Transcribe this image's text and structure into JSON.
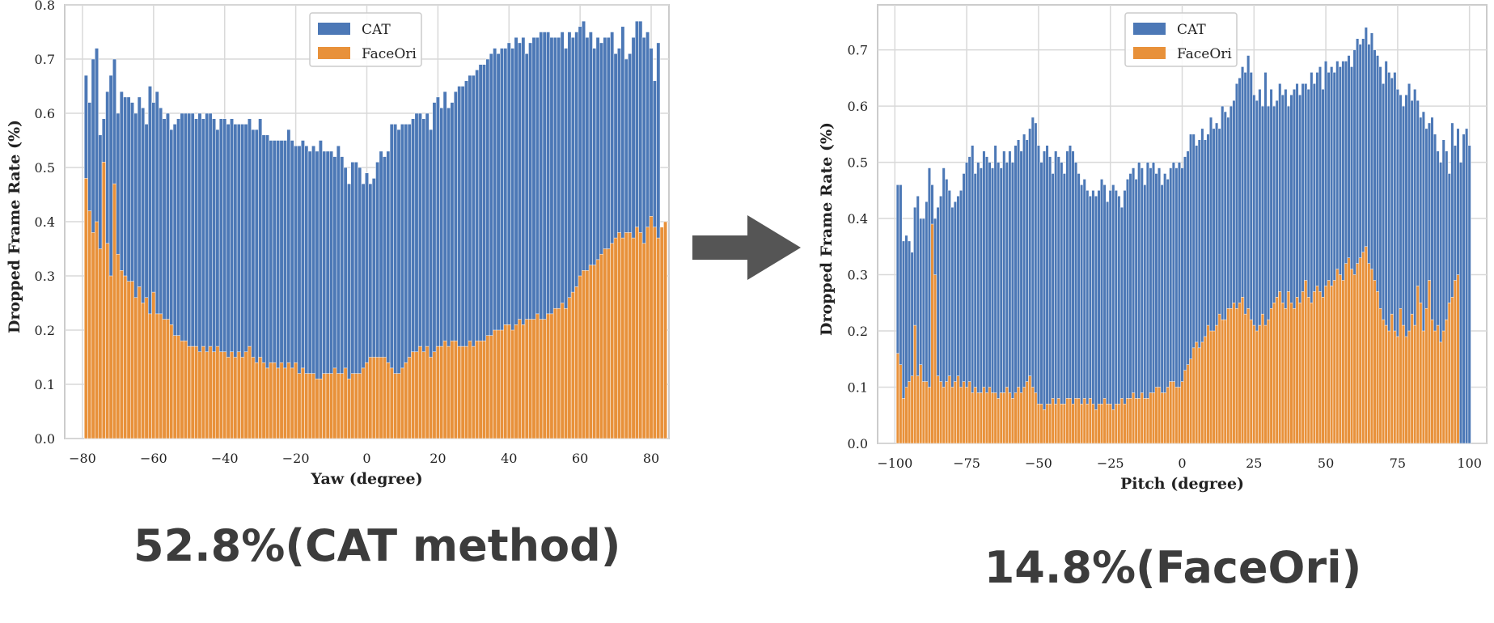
{
  "captions": {
    "left": "52.8%(CAT method)",
    "right": "14.8%(FaceOri)"
  },
  "arrow_icon": "right-arrow-icon",
  "colors": {
    "cat": "#4c78b6",
    "faceori": "#e8913a",
    "grid": "#d9d9d9",
    "frame": "#cccccc",
    "caption": "#3c3c3c"
  },
  "chart_data": [
    {
      "type": "bar",
      "stacked": "overlay",
      "title": "",
      "xlabel": "Yaw (degree)",
      "ylabel": "Dropped Frame Rate (%)",
      "xlim": [
        -85,
        85
      ],
      "ylim": [
        0,
        0.8
      ],
      "xticks": [
        -80,
        -60,
        -40,
        -20,
        0,
        20,
        40,
        60,
        80
      ],
      "xtick_labels": [
        "−80",
        "−60",
        "−40",
        "−20",
        "0",
        "20",
        "40",
        "60",
        "80"
      ],
      "yticks": [
        0,
        0.1,
        0.2,
        0.3,
        0.4,
        0.5,
        0.6,
        0.7,
        0.8
      ],
      "ytick_labels": [
        "0.0",
        "0.1",
        "0.2",
        "0.3",
        "0.4",
        "0.5",
        "0.6",
        "0.7",
        "0.8"
      ],
      "grid": true,
      "legend": "top-center",
      "x_range": [
        -79,
        80
      ],
      "bin_width": 1,
      "series": [
        {
          "name": "CAT",
          "color": "#4c78b6",
          "values": [
            0.67,
            0.62,
            0.7,
            0.72,
            0.56,
            0.59,
            0.64,
            0.67,
            0.7,
            0.6,
            0.64,
            0.63,
            0.63,
            0.62,
            0.6,
            0.63,
            0.61,
            0.58,
            0.65,
            0.62,
            0.64,
            0.61,
            0.59,
            0.6,
            0.57,
            0.58,
            0.59,
            0.6,
            0.6,
            0.6,
            0.6,
            0.59,
            0.6,
            0.59,
            0.6,
            0.6,
            0.59,
            0.57,
            0.59,
            0.59,
            0.58,
            0.59,
            0.58,
            0.58,
            0.58,
            0.58,
            0.59,
            0.57,
            0.57,
            0.59,
            0.56,
            0.56,
            0.55,
            0.55,
            0.55,
            0.55,
            0.55,
            0.57,
            0.55,
            0.54,
            0.54,
            0.55,
            0.54,
            0.53,
            0.54,
            0.53,
            0.55,
            0.53,
            0.53,
            0.53,
            0.52,
            0.54,
            0.52,
            0.5,
            0.47,
            0.51,
            0.51,
            0.5,
            0.47,
            0.49,
            0.47,
            0.48,
            0.51,
            0.53,
            0.52,
            0.53,
            0.58,
            0.58,
            0.57,
            0.58,
            0.58,
            0.58,
            0.59,
            0.6,
            0.6,
            0.59,
            0.6,
            0.57,
            0.62,
            0.63,
            0.61,
            0.64,
            0.61,
            0.62,
            0.64,
            0.65,
            0.65,
            0.66,
            0.67,
            0.67,
            0.68,
            0.69,
            0.69,
            0.7,
            0.71,
            0.72,
            0.71,
            0.72,
            0.72,
            0.73,
            0.72,
            0.74,
            0.73,
            0.74,
            0.71,
            0.73,
            0.74,
            0.74,
            0.75,
            0.75,
            0.75,
            0.74,
            0.74,
            0.74,
            0.75,
            0.72,
            0.75,
            0.74,
            0.75,
            0.76,
            0.77,
            0.74,
            0.75,
            0.72,
            0.74,
            0.73,
            0.74,
            0.74,
            0.75,
            0.71,
            0.72,
            0.76,
            0.7,
            0.71,
            0.74,
            0.77,
            0.77,
            0.74,
            0.75,
            0.72,
            0.66,
            0.73
          ]
        },
        {
          "name": "FaceOri",
          "color": "#e8913a",
          "values": [
            0.48,
            0.42,
            0.38,
            0.4,
            0.35,
            0.51,
            0.36,
            0.3,
            0.47,
            0.34,
            0.31,
            0.3,
            0.29,
            0.29,
            0.26,
            0.28,
            0.25,
            0.26,
            0.23,
            0.27,
            0.23,
            0.23,
            0.22,
            0.22,
            0.21,
            0.19,
            0.19,
            0.18,
            0.18,
            0.17,
            0.17,
            0.17,
            0.16,
            0.17,
            0.16,
            0.17,
            0.16,
            0.17,
            0.16,
            0.16,
            0.15,
            0.16,
            0.15,
            0.16,
            0.15,
            0.16,
            0.17,
            0.15,
            0.14,
            0.15,
            0.14,
            0.13,
            0.14,
            0.14,
            0.13,
            0.14,
            0.13,
            0.14,
            0.13,
            0.14,
            0.12,
            0.13,
            0.12,
            0.12,
            0.12,
            0.11,
            0.11,
            0.12,
            0.12,
            0.12,
            0.13,
            0.12,
            0.12,
            0.13,
            0.11,
            0.12,
            0.12,
            0.12,
            0.13,
            0.14,
            0.15,
            0.15,
            0.15,
            0.15,
            0.15,
            0.14,
            0.13,
            0.12,
            0.12,
            0.13,
            0.14,
            0.15,
            0.16,
            0.16,
            0.17,
            0.16,
            0.17,
            0.15,
            0.16,
            0.17,
            0.17,
            0.18,
            0.17,
            0.18,
            0.18,
            0.17,
            0.17,
            0.17,
            0.18,
            0.17,
            0.18,
            0.18,
            0.18,
            0.19,
            0.19,
            0.2,
            0.2,
            0.2,
            0.21,
            0.21,
            0.2,
            0.21,
            0.22,
            0.21,
            0.22,
            0.22,
            0.22,
            0.23,
            0.22,
            0.22,
            0.23,
            0.23,
            0.24,
            0.24,
            0.25,
            0.24,
            0.26,
            0.27,
            0.28,
            0.3,
            0.31,
            0.31,
            0.32,
            0.32,
            0.33,
            0.34,
            0.35,
            0.35,
            0.36,
            0.37,
            0.38,
            0.37,
            0.38,
            0.38,
            0.37,
            0.39,
            0.38,
            0.36,
            0.39,
            0.41,
            0.39,
            0.37,
            0.39,
            0.4
          ]
        }
      ]
    },
    {
      "type": "bar",
      "stacked": "overlay",
      "title": "",
      "xlabel": "Pitch (degree)",
      "ylabel": "Dropped Frame Rate (%)",
      "xlim": [
        -106,
        106
      ],
      "ylim": [
        0,
        0.78
      ],
      "xticks": [
        -100,
        -75,
        -50,
        -25,
        0,
        25,
        50,
        75,
        100
      ],
      "xtick_labels": [
        "−100",
        "−75",
        "−50",
        "−25",
        "0",
        "25",
        "50",
        "75",
        "100"
      ],
      "yticks": [
        0,
        0.1,
        0.2,
        0.3,
        0.4,
        0.5,
        0.6,
        0.7
      ],
      "ytick_labels": [
        "0.0",
        "0.1",
        "0.2",
        "0.3",
        "0.4",
        "0.5",
        "0.6",
        "0.7"
      ],
      "grid": true,
      "legend": "top-center",
      "x_range": [
        -99,
        100
      ],
      "bin_width": 1,
      "series": [
        {
          "name": "CAT",
          "color": "#4c78b6",
          "values": [
            0.46,
            0.46,
            0.36,
            0.37,
            0.36,
            0.34,
            0.42,
            0.44,
            0.4,
            0.4,
            0.43,
            0.49,
            0.46,
            0.4,
            0.42,
            0.44,
            0.49,
            0.47,
            0.45,
            0.42,
            0.43,
            0.44,
            0.45,
            0.48,
            0.5,
            0.51,
            0.53,
            0.48,
            0.5,
            0.49,
            0.52,
            0.51,
            0.5,
            0.49,
            0.53,
            0.5,
            0.49,
            0.52,
            0.5,
            0.52,
            0.5,
            0.53,
            0.54,
            0.52,
            0.55,
            0.54,
            0.56,
            0.58,
            0.57,
            0.53,
            0.5,
            0.52,
            0.53,
            0.51,
            0.48,
            0.52,
            0.51,
            0.5,
            0.48,
            0.52,
            0.53,
            0.52,
            0.5,
            0.48,
            0.46,
            0.47,
            0.45,
            0.44,
            0.45,
            0.44,
            0.45,
            0.47,
            0.46,
            0.43,
            0.45,
            0.46,
            0.45,
            0.44,
            0.42,
            0.45,
            0.47,
            0.48,
            0.49,
            0.47,
            0.5,
            0.49,
            0.46,
            0.5,
            0.49,
            0.5,
            0.48,
            0.49,
            0.46,
            0.48,
            0.47,
            0.49,
            0.5,
            0.49,
            0.5,
            0.49,
            0.51,
            0.52,
            0.55,
            0.55,
            0.53,
            0.54,
            0.56,
            0.54,
            0.55,
            0.58,
            0.56,
            0.57,
            0.56,
            0.6,
            0.59,
            0.58,
            0.6,
            0.61,
            0.64,
            0.65,
            0.67,
            0.66,
            0.69,
            0.66,
            0.62,
            0.61,
            0.63,
            0.6,
            0.66,
            0.6,
            0.63,
            0.6,
            0.61,
            0.64,
            0.62,
            0.63,
            0.6,
            0.62,
            0.63,
            0.64,
            0.62,
            0.64,
            0.64,
            0.63,
            0.66,
            0.64,
            0.66,
            0.67,
            0.63,
            0.68,
            0.66,
            0.67,
            0.66,
            0.68,
            0.67,
            0.68,
            0.68,
            0.69,
            0.67,
            0.7,
            0.72,
            0.71,
            0.72,
            0.74,
            0.71,
            0.73,
            0.7,
            0.69,
            0.67,
            0.64,
            0.68,
            0.66,
            0.65,
            0.66,
            0.63,
            0.62,
            0.6,
            0.62,
            0.64,
            0.61,
            0.63,
            0.61,
            0.58,
            0.59,
            0.56,
            0.57,
            0.58,
            0.55,
            0.52,
            0.5,
            0.54,
            0.52,
            0.48,
            0.57,
            0.53,
            0.56,
            0.5,
            0.55,
            0.56,
            0.53
          ]
        },
        {
          "name": "FaceOri",
          "color": "#e8913a",
          "values": [
            0.16,
            0.14,
            0.08,
            0.1,
            0.11,
            0.12,
            0.21,
            0.12,
            0.14,
            0.11,
            0.11,
            0.1,
            0.39,
            0.3,
            0.12,
            0.11,
            0.1,
            0.11,
            0.12,
            0.1,
            0.11,
            0.12,
            0.1,
            0.11,
            0.1,
            0.11,
            0.09,
            0.1,
            0.09,
            0.09,
            0.1,
            0.09,
            0.1,
            0.09,
            0.09,
            0.08,
            0.09,
            0.09,
            0.1,
            0.09,
            0.08,
            0.09,
            0.1,
            0.09,
            0.1,
            0.11,
            0.12,
            0.1,
            0.09,
            0.07,
            0.07,
            0.06,
            0.07,
            0.07,
            0.08,
            0.07,
            0.08,
            0.07,
            0.07,
            0.08,
            0.08,
            0.07,
            0.08,
            0.08,
            0.07,
            0.08,
            0.07,
            0.08,
            0.07,
            0.06,
            0.07,
            0.07,
            0.08,
            0.07,
            0.07,
            0.06,
            0.07,
            0.07,
            0.08,
            0.07,
            0.08,
            0.08,
            0.09,
            0.08,
            0.08,
            0.09,
            0.08,
            0.08,
            0.09,
            0.09,
            0.1,
            0.1,
            0.09,
            0.09,
            0.1,
            0.11,
            0.11,
            0.1,
            0.1,
            0.11,
            0.13,
            0.14,
            0.15,
            0.17,
            0.18,
            0.17,
            0.18,
            0.19,
            0.21,
            0.2,
            0.2,
            0.21,
            0.23,
            0.22,
            0.22,
            0.24,
            0.24,
            0.25,
            0.24,
            0.25,
            0.26,
            0.23,
            0.24,
            0.22,
            0.21,
            0.2,
            0.21,
            0.23,
            0.21,
            0.22,
            0.24,
            0.25,
            0.26,
            0.27,
            0.25,
            0.24,
            0.27,
            0.25,
            0.24,
            0.26,
            0.25,
            0.27,
            0.29,
            0.26,
            0.25,
            0.27,
            0.28,
            0.27,
            0.26,
            0.28,
            0.29,
            0.28,
            0.29,
            0.31,
            0.3,
            0.29,
            0.32,
            0.33,
            0.31,
            0.3,
            0.32,
            0.33,
            0.34,
            0.35,
            0.32,
            0.31,
            0.29,
            0.27,
            0.24,
            0.22,
            0.21,
            0.2,
            0.23,
            0.2,
            0.19,
            0.24,
            0.21,
            0.19,
            0.2,
            0.23,
            0.21,
            0.28,
            0.25,
            0.2,
            0.24,
            0.29,
            0.22,
            0.2,
            0.21,
            0.18,
            0.2,
            0.22,
            0.25,
            0.26,
            0.29,
            0.3
          ]
        }
      ]
    }
  ]
}
